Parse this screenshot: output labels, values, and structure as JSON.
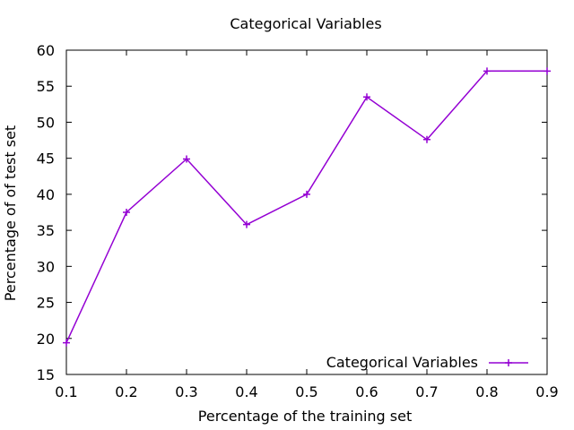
{
  "chart_data": {
    "type": "line",
    "title": "Categorical Variables",
    "xlabel": "Percentage of the training set",
    "ylabel": "Percentage of of test set",
    "xlim": [
      0.1,
      0.9
    ],
    "ylim": [
      15,
      60
    ],
    "xticks": [
      "0.1",
      "0.2",
      "0.3",
      "0.4",
      "0.5",
      "0.6",
      "0.7",
      "0.8",
      "0.9"
    ],
    "yticks": [
      "15",
      "20",
      "25",
      "30",
      "35",
      "40",
      "45",
      "50",
      "55",
      "60"
    ],
    "grid": false,
    "legend_position": "bottom-right",
    "series": [
      {
        "name": "Categorical Variables",
        "color": "#9400d3",
        "marker": "plus",
        "x": [
          0.1,
          0.2,
          0.3,
          0.4,
          0.5,
          0.6,
          0.7,
          0.8,
          0.9
        ],
        "y": [
          19.4,
          37.5,
          44.9,
          35.8,
          40.0,
          53.5,
          47.6,
          57.1,
          57.1
        ]
      }
    ]
  }
}
